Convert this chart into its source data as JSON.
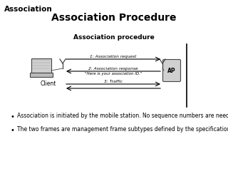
{
  "title_topleft": "Association",
  "title_main": "Association Procedure",
  "diagram_title": "Association procedure",
  "client_label": "Client",
  "ap_label": "AP",
  "arrow1_label": "1: Association request",
  "arrow2_label1": "2: Association response",
  "arrow2_label2": "\"Here is your association ID.\"",
  "arrow3_label": "3: Traffic",
  "bullet1": "Association is initiated by the mobile station. No sequence numbers are needed",
  "bullet2": "The two frames are management frame subtypes defined by the specification.",
  "white": "#ffffff",
  "black": "#000000",
  "gray": "#999999",
  "lightgray": "#d0d0d0",
  "midgray": "#bbbbbb",
  "darkgray": "#444444"
}
